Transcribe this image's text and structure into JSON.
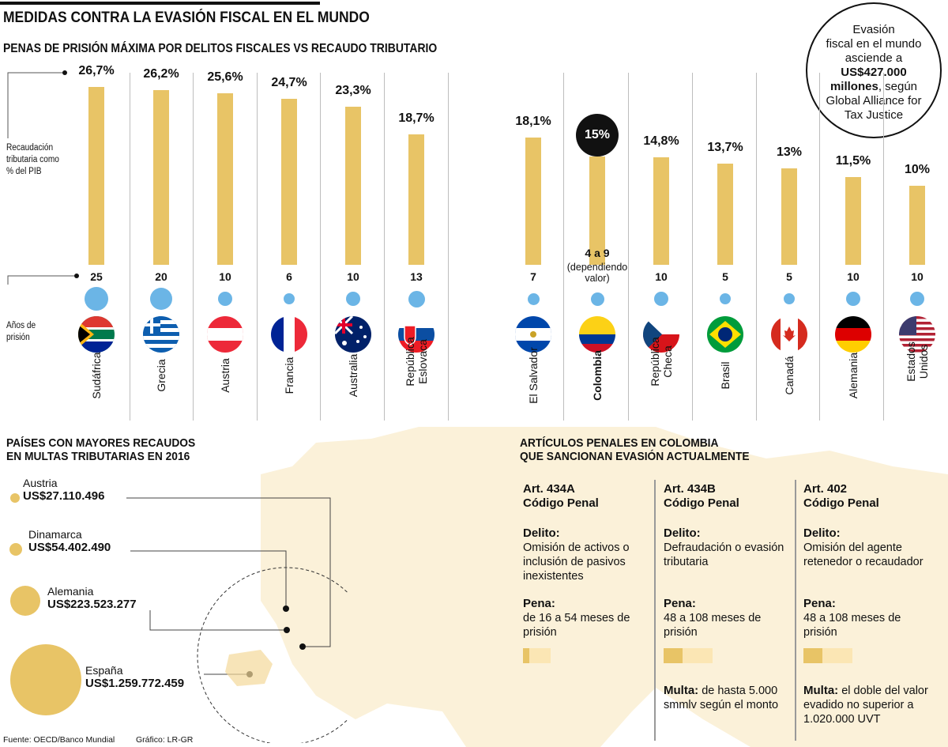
{
  "title": "MEDIDAS CONTRA LA EVASIÓN FISCAL EN EL MUNDO",
  "subtitle": "PENAS DE PRISIÓN MÁXIMA POR DELITOS FISCALES VS RECAUDO TRIBUTARIO",
  "callout": {
    "line1": "Evasión",
    "line2": "fiscal en el mundo",
    "line3": "asciende a",
    "amount": "US$427.000",
    "amount2": "millones",
    "rest": ", según",
    "line6": "Global Alliance for",
    "line7": "Tax Justice"
  },
  "labels": {
    "revenue": "Recaudación tributaria como % del PIB",
    "years": "Años de prisión"
  },
  "chart_data": {
    "type": "bar",
    "title": "PENAS DE PRISIÓN MÁXIMA POR DELITOS FISCALES VS RECAUDO TRIBUTARIO",
    "ylabel": "Recaudación tributaria como % del PIB",
    "categories": [
      "Sudáfrica",
      "Grecia",
      "Austria",
      "Francia",
      "Australia",
      "República Eslovaca",
      "El Salvador",
      "Colombia",
      "República Checa",
      "Brasil",
      "Canadá",
      "Alemania",
      "Estados Unidos"
    ],
    "value_labels": [
      "26,7%",
      "26,2%",
      "25,6%",
      "24,7%",
      "23,3%",
      "18,7%",
      "18,1%",
      "15%",
      "14,8%",
      "13,7%",
      "13%",
      "11,5%",
      "10%"
    ],
    "values": [
      26.7,
      26.2,
      25.6,
      24.7,
      23.3,
      18.7,
      18.1,
      15,
      14.8,
      13.7,
      13,
      11.5,
      10
    ],
    "years_labels": [
      "25",
      "20",
      "10",
      "6",
      "10",
      "13",
      "7",
      "4 a 9",
      "10",
      "5",
      "5",
      "10",
      "10"
    ],
    "years_note": "(dependiendo valor)",
    "years": [
      25,
      20,
      10,
      6,
      10,
      13,
      7,
      9,
      10,
      5,
      5,
      10,
      10
    ],
    "highlight": "Colombia"
  },
  "fines": {
    "title1": "PAÍSES CON MAYORES RECAUDOS",
    "title2": "EN MULTAS TRIBUTARIAS EN 2016",
    "items": [
      {
        "country": "Austria",
        "amount": "US$27.110.496",
        "value": 27110496
      },
      {
        "country": "Dinamarca",
        "amount": "US$54.402.490",
        "value": 54402490
      },
      {
        "country": "Alemania",
        "amount": "US$223.523.277",
        "value": 223523277
      },
      {
        "country": "España",
        "amount": "US$1.259.772.459",
        "value": 1259772459
      }
    ]
  },
  "articles": {
    "title1": "ARTÍCULOS PENALES EN COLOMBIA",
    "title2": "QUE SANCIONAN EVASIÓN ACTUALMENTE",
    "items": [
      {
        "art": "Art. 434A",
        "code": "Código Penal",
        "delito_label": "Delito:",
        "delito": "Omisión de activos o inclusión de pasivos inexistentes",
        "pena_label": "Pena:",
        "pena": "de 16 a 54 meses de prisión",
        "min_months": 16,
        "max_months": 54,
        "multa_label": "",
        "multa": ""
      },
      {
        "art": "Art. 434B",
        "code": "Código Penal",
        "delito_label": "Delito:",
        "delito": "Defraudación o evasión tributaria",
        "pena_label": "Pena:",
        "pena": "48 a 108 meses de prisión",
        "min_months": 48,
        "max_months": 108,
        "multa_label": "Multa:",
        "multa": " de hasta 5.000 smmlv según el monto"
      },
      {
        "art": "Art. 402",
        "code": "Código Penal",
        "delito_label": "Delito:",
        "delito": "Omisión del agente retenedor o recaudador",
        "pena_label": "Pena:",
        "pena": "48 a 108 meses de prisión",
        "min_months": 48,
        "max_months": 108,
        "multa_label": "Multa:",
        "multa": " el doble del valor evadido no superior a 1.020.000 UVT"
      }
    ]
  },
  "footer": {
    "source": "Fuente: OECD/Banco Mundial",
    "credit": "Gráfico: LR-GR"
  },
  "colors": {
    "bar": "#e8c466",
    "dot": "#6bb5e6",
    "map": "#fbf1d9",
    "pena_light": "#fbe6b4"
  }
}
